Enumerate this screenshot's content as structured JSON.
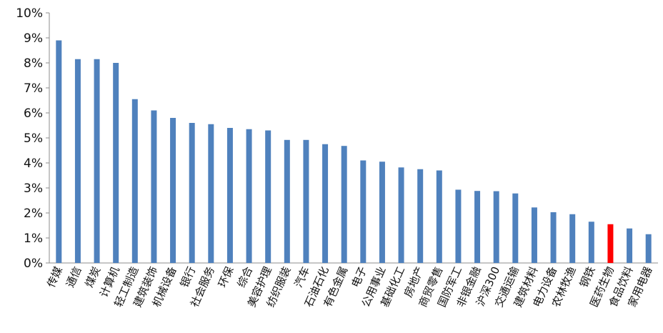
{
  "chart_data": {
    "type": "bar",
    "title": "",
    "xlabel": "",
    "ylabel": "",
    "ylim": [
      0,
      10
    ],
    "yticks": [
      "0%",
      "1%",
      "2%",
      "3%",
      "4%",
      "5%",
      "6%",
      "7%",
      "8%",
      "9%",
      "10%"
    ],
    "grid": false,
    "legend": "none",
    "colors": {
      "default": "#4f81bd",
      "highlight": "#ff0000"
    },
    "highlight_category": "医药生物",
    "categories": [
      "传媒",
      "通信",
      "煤炭",
      "计算机",
      "轻工制造",
      "建筑装饰",
      "机械设备",
      "银行",
      "社会服务",
      "环保",
      "综合",
      "美容护理",
      "纺织服装",
      "汽车",
      "石油石化",
      "有色金属",
      "电子",
      "公用事业",
      "基础化工",
      "房地产",
      "商贸零售",
      "国防军工",
      "非银金融",
      "沪深300",
      "交通运输",
      "建筑材料",
      "电力设备",
      "农林牧渔",
      "钢铁",
      "医药生物",
      "食品饮料",
      "家用电器"
    ],
    "values": [
      8.9,
      8.15,
      8.15,
      8.0,
      6.55,
      6.1,
      5.8,
      5.6,
      5.55,
      5.4,
      5.35,
      5.3,
      4.92,
      4.92,
      4.75,
      4.68,
      4.1,
      4.05,
      3.82,
      3.75,
      3.7,
      2.93,
      2.88,
      2.87,
      2.78,
      2.22,
      2.03,
      1.95,
      1.65,
      1.55,
      1.38,
      1.15
    ]
  }
}
